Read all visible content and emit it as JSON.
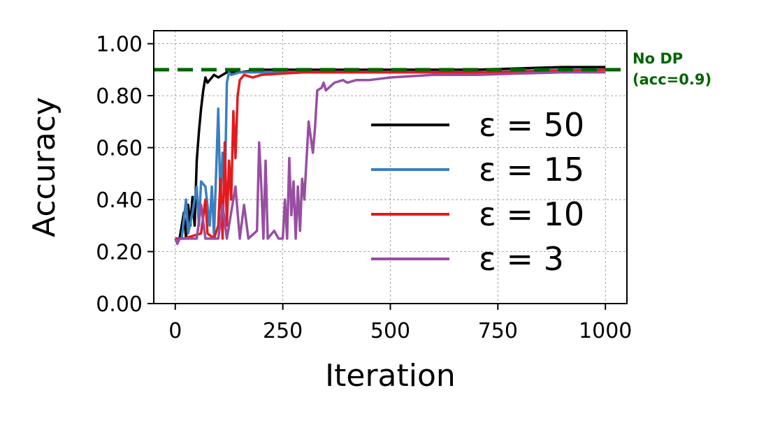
{
  "chart_data": {
    "type": "line",
    "xlabel": "Iteration",
    "ylabel": "Accuracy",
    "xlim": [
      -50,
      1050
    ],
    "ylim": [
      0.0,
      1.05
    ],
    "x_ticks": [
      0,
      250,
      500,
      750,
      1000
    ],
    "x_tick_labels": [
      "0",
      "250",
      "500",
      "750",
      "1000"
    ],
    "y_ticks": [
      0.0,
      0.2,
      0.4,
      0.6,
      0.8,
      1.0
    ],
    "y_tick_labels": [
      "0.00",
      "0.20",
      "0.40",
      "0.60",
      "0.80",
      "1.00"
    ],
    "grid": true,
    "legend_position": "center-right",
    "reference_line": {
      "y": 0.9,
      "label_line1": "No DP",
      "label_line2": "(acc=0.9)",
      "color": "#006400"
    },
    "series": [
      {
        "name": "ε = 50",
        "color": "#000000",
        "points": [
          [
            0,
            0.25
          ],
          [
            10,
            0.25
          ],
          [
            20,
            0.35
          ],
          [
            25,
            0.25
          ],
          [
            30,
            0.38
          ],
          [
            35,
            0.3
          ],
          [
            40,
            0.41
          ],
          [
            45,
            0.3
          ],
          [
            50,
            0.55
          ],
          [
            55,
            0.66
          ],
          [
            60,
            0.75
          ],
          [
            65,
            0.82
          ],
          [
            70,
            0.87
          ],
          [
            75,
            0.85
          ],
          [
            80,
            0.86
          ],
          [
            90,
            0.88
          ],
          [
            100,
            0.87
          ],
          [
            120,
            0.89
          ],
          [
            150,
            0.89
          ],
          [
            200,
            0.9
          ],
          [
            300,
            0.9
          ],
          [
            400,
            0.9
          ],
          [
            500,
            0.9
          ],
          [
            600,
            0.9
          ],
          [
            700,
            0.9
          ],
          [
            800,
            0.905
          ],
          [
            900,
            0.91
          ],
          [
            1000,
            0.91
          ]
        ]
      },
      {
        "name": "ε = 15",
        "color": "#3a7fbf",
        "points": [
          [
            0,
            0.25
          ],
          [
            15,
            0.25
          ],
          [
            25,
            0.4
          ],
          [
            30,
            0.27
          ],
          [
            40,
            0.35
          ],
          [
            50,
            0.45
          ],
          [
            55,
            0.3
          ],
          [
            60,
            0.47
          ],
          [
            70,
            0.45
          ],
          [
            80,
            0.3
          ],
          [
            85,
            0.45
          ],
          [
            90,
            0.26
          ],
          [
            95,
            0.5
          ],
          [
            100,
            0.75
          ],
          [
            105,
            0.4
          ],
          [
            110,
            0.58
          ],
          [
            115,
            0.42
          ],
          [
            120,
            0.85
          ],
          [
            125,
            0.89
          ],
          [
            130,
            0.88
          ],
          [
            150,
            0.89
          ],
          [
            200,
            0.89
          ],
          [
            300,
            0.89
          ],
          [
            500,
            0.89
          ],
          [
            700,
            0.89
          ],
          [
            900,
            0.9
          ],
          [
            1000,
            0.9
          ]
        ]
      },
      {
        "name": "ε = 10",
        "color": "#e41a1c",
        "points": [
          [
            0,
            0.25
          ],
          [
            20,
            0.25
          ],
          [
            40,
            0.26
          ],
          [
            60,
            0.27
          ],
          [
            70,
            0.4
          ],
          [
            75,
            0.27
          ],
          [
            90,
            0.25
          ],
          [
            100,
            0.3
          ],
          [
            105,
            0.48
          ],
          [
            110,
            0.25
          ],
          [
            115,
            0.62
          ],
          [
            120,
            0.3
          ],
          [
            125,
            0.55
          ],
          [
            130,
            0.4
          ],
          [
            135,
            0.74
          ],
          [
            140,
            0.56
          ],
          [
            145,
            0.8
          ],
          [
            150,
            0.86
          ],
          [
            160,
            0.88
          ],
          [
            180,
            0.87
          ],
          [
            200,
            0.88
          ],
          [
            250,
            0.885
          ],
          [
            300,
            0.89
          ],
          [
            500,
            0.89
          ],
          [
            700,
            0.89
          ],
          [
            900,
            0.895
          ],
          [
            1000,
            0.9
          ]
        ]
      },
      {
        "name": "ε = 3",
        "color": "#984ea3",
        "points": [
          [
            0,
            0.25
          ],
          [
            5,
            0.23
          ],
          [
            10,
            0.25
          ],
          [
            50,
            0.25
          ],
          [
            60,
            0.38
          ],
          [
            70,
            0.25
          ],
          [
            100,
            0.25
          ],
          [
            110,
            0.38
          ],
          [
            120,
            0.25
          ],
          [
            140,
            0.45
          ],
          [
            150,
            0.25
          ],
          [
            160,
            0.38
          ],
          [
            170,
            0.25
          ],
          [
            190,
            0.28
          ],
          [
            195,
            0.62
          ],
          [
            200,
            0.45
          ],
          [
            205,
            0.25
          ],
          [
            210,
            0.55
          ],
          [
            215,
            0.25
          ],
          [
            230,
            0.28
          ],
          [
            240,
            0.25
          ],
          [
            250,
            0.25
          ],
          [
            255,
            0.4
          ],
          [
            260,
            0.25
          ],
          [
            265,
            0.56
          ],
          [
            270,
            0.34
          ],
          [
            275,
            0.47
          ],
          [
            280,
            0.25
          ],
          [
            285,
            0.45
          ],
          [
            290,
            0.28
          ],
          [
            295,
            0.48
          ],
          [
            300,
            0.4
          ],
          [
            305,
            0.55
          ],
          [
            310,
            0.7
          ],
          [
            315,
            0.64
          ],
          [
            320,
            0.58
          ],
          [
            325,
            0.68
          ],
          [
            330,
            0.82
          ],
          [
            340,
            0.83
          ],
          [
            345,
            0.85
          ],
          [
            350,
            0.82
          ],
          [
            370,
            0.85
          ],
          [
            390,
            0.86
          ],
          [
            400,
            0.85
          ],
          [
            420,
            0.86
          ],
          [
            450,
            0.86
          ],
          [
            500,
            0.87
          ],
          [
            600,
            0.88
          ],
          [
            700,
            0.88
          ],
          [
            800,
            0.885
          ],
          [
            900,
            0.89
          ],
          [
            1000,
            0.89
          ]
        ]
      }
    ]
  }
}
